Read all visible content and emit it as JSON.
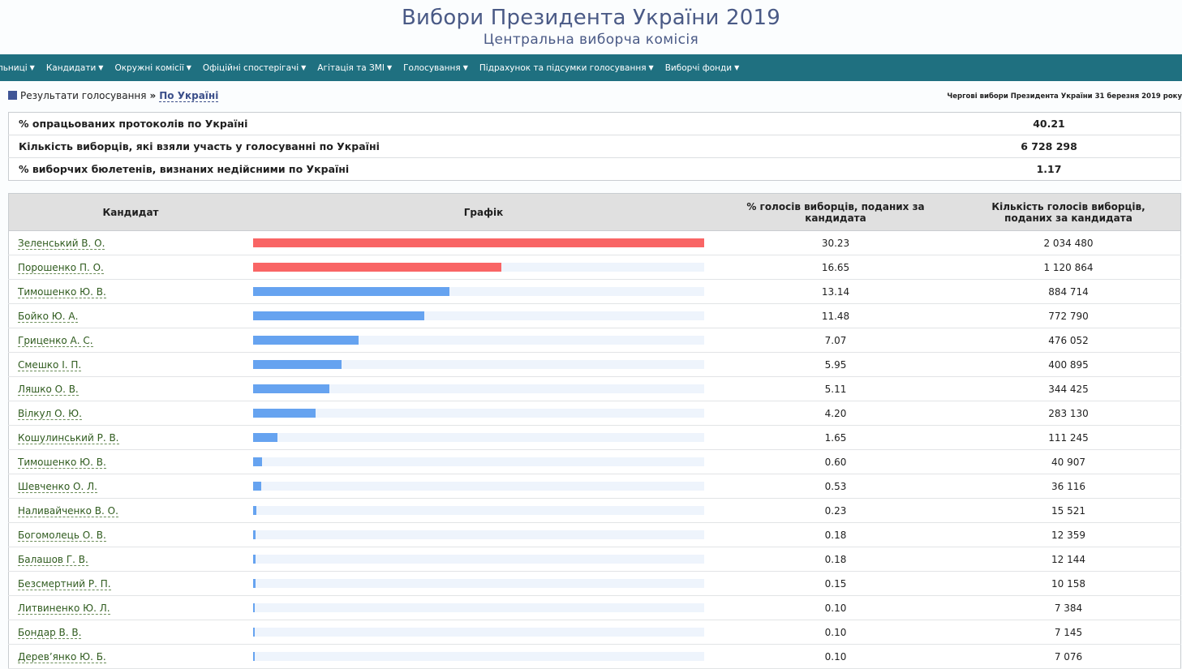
{
  "header": {
    "title": "Вибори Президента України 2019",
    "subtitle": "Центральна виборча комісія"
  },
  "nav": [
    {
      "label": "льниці"
    },
    {
      "label": "Кандидати"
    },
    {
      "label": "Окружні комісії"
    },
    {
      "label": "Офіційні спостерігачі"
    },
    {
      "label": "Агітація та ЗМІ"
    },
    {
      "label": "Голосування"
    },
    {
      "label": "Підрахунок та підсумки голосування"
    },
    {
      "label": "Виборчі фонди"
    }
  ],
  "breadcrumb": {
    "parent": "Результати голосування",
    "separator": "»",
    "current": "По Україні",
    "election_label": "Чергові вибори Президента України 31 березня 2019 року"
  },
  "summary": [
    {
      "label": "% опрацьованих протоколів по Україні",
      "value": "40.21"
    },
    {
      "label": "Кількість виборців, які взяли участь у голосуванні по Україні",
      "value": "6 728 298"
    },
    {
      "label": "% виборчих бюлетенів, визнаних недійсними по Україні",
      "value": "1.17"
    }
  ],
  "results": {
    "headers": {
      "candidate": "Кандидат",
      "chart": "Графік",
      "percent": "% голосів виборців, поданих за кандидата",
      "count": "Кількість голосів виборців, поданих за кандидата"
    },
    "colors": {
      "leader": "#f96565",
      "other": "#66a3f0"
    },
    "rows": [
      {
        "name": "Зеленський В. О.",
        "percent": "30.23",
        "count": "2 034 480",
        "leader": true
      },
      {
        "name": "Порошенко П. О.",
        "percent": "16.65",
        "count": "1 120 864",
        "leader": true
      },
      {
        "name": "Тимошенко Ю. В.",
        "percent": "13.14",
        "count": "884 714",
        "leader": false
      },
      {
        "name": "Бойко Ю. А.",
        "percent": "11.48",
        "count": "772 790",
        "leader": false
      },
      {
        "name": "Гриценко А. С.",
        "percent": "7.07",
        "count": "476 052",
        "leader": false
      },
      {
        "name": "Смешко І. П.",
        "percent": "5.95",
        "count": "400 895",
        "leader": false
      },
      {
        "name": "Ляшко О. В.",
        "percent": "5.11",
        "count": "344 425",
        "leader": false
      },
      {
        "name": "Вілкул О. Ю.",
        "percent": "4.20",
        "count": "283 130",
        "leader": false
      },
      {
        "name": "Кошулинський Р. В.",
        "percent": "1.65",
        "count": "111 245",
        "leader": false
      },
      {
        "name": "Тимошенко Ю. В.",
        "percent": "0.60",
        "count": "40 907",
        "leader": false
      },
      {
        "name": "Шевченко О. Л.",
        "percent": "0.53",
        "count": "36 116",
        "leader": false
      },
      {
        "name": "Наливайченко В. О.",
        "percent": "0.23",
        "count": "15 521",
        "leader": false
      },
      {
        "name": "Богомолець О. В.",
        "percent": "0.18",
        "count": "12 359",
        "leader": false
      },
      {
        "name": "Балашов Г. В.",
        "percent": "0.18",
        "count": "12 144",
        "leader": false
      },
      {
        "name": "Безсмертний Р. П.",
        "percent": "0.15",
        "count": "10 158",
        "leader": false
      },
      {
        "name": "Литвиненко Ю. Л.",
        "percent": "0.10",
        "count": "7 384",
        "leader": false
      },
      {
        "name": "Бондар В. В.",
        "percent": "0.10",
        "count": "7 145",
        "leader": false
      },
      {
        "name": "Дерев’янко Ю. Б.",
        "percent": "0.10",
        "count": "7 076",
        "leader": false
      }
    ]
  }
}
